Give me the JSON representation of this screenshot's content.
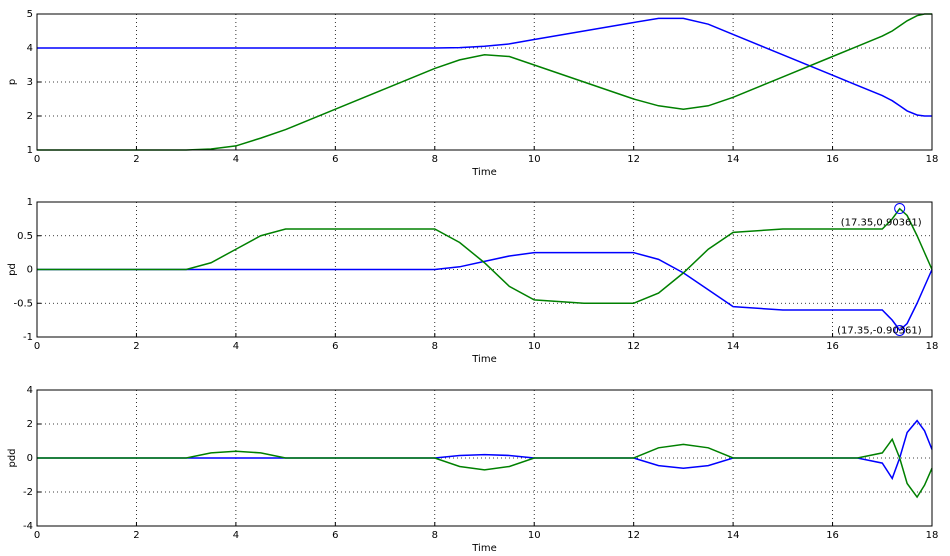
{
  "chart_data": [
    {
      "type": "line",
      "xlabel": "Time",
      "ylabel": "p",
      "x": [
        0,
        1,
        2,
        3,
        3.5,
        4,
        4.5,
        5,
        6,
        7,
        8,
        8.5,
        9,
        9.5,
        10,
        11,
        12,
        12.5,
        13,
        13.5,
        14,
        15,
        16,
        16.5,
        17,
        17.2,
        17.35,
        17.5,
        17.7,
        17.85,
        18
      ],
      "series": [
        {
          "color": "#0000ff",
          "values": [
            4,
            4,
            4,
            4,
            4,
            4,
            4,
            4,
            4,
            4,
            4,
            4.01,
            4.05,
            4.12,
            4.25,
            4.5,
            4.75,
            4.87,
            4.87,
            4.7,
            4.4,
            3.8,
            3.2,
            2.9,
            2.6,
            2.45,
            2.3,
            2.15,
            2.03,
            2,
            2
          ]
        },
        {
          "color": "#008000",
          "values": [
            1,
            1,
            1,
            1,
            1.03,
            1.12,
            1.35,
            1.6,
            2.2,
            2.8,
            3.4,
            3.65,
            3.8,
            3.75,
            3.5,
            3.0,
            2.5,
            2.3,
            2.2,
            2.3,
            2.55,
            3.15,
            3.75,
            4.05,
            4.35,
            4.5,
            4.65,
            4.8,
            4.95,
            5,
            5
          ]
        }
      ],
      "xlim": [
        0,
        18
      ],
      "xticks": [
        0,
        2,
        4,
        6,
        8,
        10,
        12,
        14,
        16,
        18
      ],
      "ylim": [
        1,
        5
      ],
      "yticks": [
        1,
        2,
        3,
        4,
        5
      ],
      "grid": true
    },
    {
      "type": "line",
      "xlabel": "Time",
      "ylabel": "pd",
      "x": [
        0,
        1,
        2,
        3,
        3.5,
        4,
        4.5,
        5,
        6,
        7,
        8,
        8.5,
        9,
        9.5,
        10,
        11,
        12,
        12.5,
        13,
        13.5,
        14,
        15,
        16,
        16.5,
        17,
        17.2,
        17.35,
        17.5,
        17.7,
        17.85,
        18
      ],
      "series": [
        {
          "color": "#0000ff",
          "values": [
            0,
            0,
            0,
            0,
            0,
            0,
            0,
            0,
            0,
            0,
            0,
            0.04,
            0.12,
            0.2,
            0.25,
            0.25,
            0.25,
            0.15,
            -0.05,
            -0.3,
            -0.55,
            -0.6,
            -0.6,
            -0.6,
            -0.6,
            -0.75,
            -0.9,
            -0.8,
            -0.5,
            -0.25,
            0
          ]
        },
        {
          "color": "#008000",
          "values": [
            0,
            0,
            0,
            0,
            0.1,
            0.3,
            0.5,
            0.6,
            0.6,
            0.6,
            0.6,
            0.4,
            0.1,
            -0.25,
            -0.45,
            -0.5,
            -0.5,
            -0.35,
            -0.05,
            0.3,
            0.55,
            0.6,
            0.6,
            0.6,
            0.6,
            0.75,
            0.9,
            0.8,
            0.5,
            0.25,
            0
          ]
        }
      ],
      "annotations": [
        {
          "x": 17.35,
          "y": 0.90361,
          "text": "(17.35,0.90361)"
        },
        {
          "x": 17.35,
          "y": -0.90361,
          "text": "(17.35,-0.90361)"
        }
      ],
      "xlim": [
        0,
        18
      ],
      "xticks": [
        0,
        2,
        4,
        6,
        8,
        10,
        12,
        14,
        16,
        18
      ],
      "ylim": [
        -1,
        1
      ],
      "yticks": [
        -1,
        -0.5,
        0,
        0.5,
        1
      ],
      "grid": true
    },
    {
      "type": "line",
      "xlabel": "Time",
      "ylabel": "pdd",
      "x": [
        0,
        1,
        2,
        3,
        3.5,
        4,
        4.5,
        5,
        6,
        7,
        8,
        8.5,
        9,
        9.5,
        10,
        11,
        12,
        12.5,
        13,
        13.5,
        14,
        15,
        16,
        16.5,
        17,
        17.2,
        17.35,
        17.5,
        17.7,
        17.85,
        18
      ],
      "series": [
        {
          "color": "#0000ff",
          "values": [
            0,
            0,
            0,
            0,
            0,
            0,
            0,
            0,
            0,
            0,
            0,
            0.15,
            0.2,
            0.15,
            0,
            0,
            0,
            -0.45,
            -0.6,
            -0.45,
            0,
            0,
            0,
            0,
            -0.3,
            -1.2,
            0,
            1.5,
            2.2,
            1.6,
            0.5
          ]
        },
        {
          "color": "#008000",
          "values": [
            0,
            0,
            0,
            0,
            0.3,
            0.4,
            0.3,
            0,
            0,
            0,
            0,
            -0.5,
            -0.7,
            -0.5,
            0,
            0,
            0,
            0.6,
            0.8,
            0.6,
            0,
            0,
            0,
            0,
            0.3,
            1.1,
            0,
            -1.5,
            -2.3,
            -1.6,
            -0.6
          ]
        }
      ],
      "xlim": [
        0,
        18
      ],
      "xticks": [
        0,
        2,
        4,
        6,
        8,
        10,
        12,
        14,
        16,
        18
      ],
      "ylim": [
        -4,
        4
      ],
      "yticks": [
        -4,
        -2,
        0,
        2,
        4
      ],
      "grid": true
    }
  ]
}
